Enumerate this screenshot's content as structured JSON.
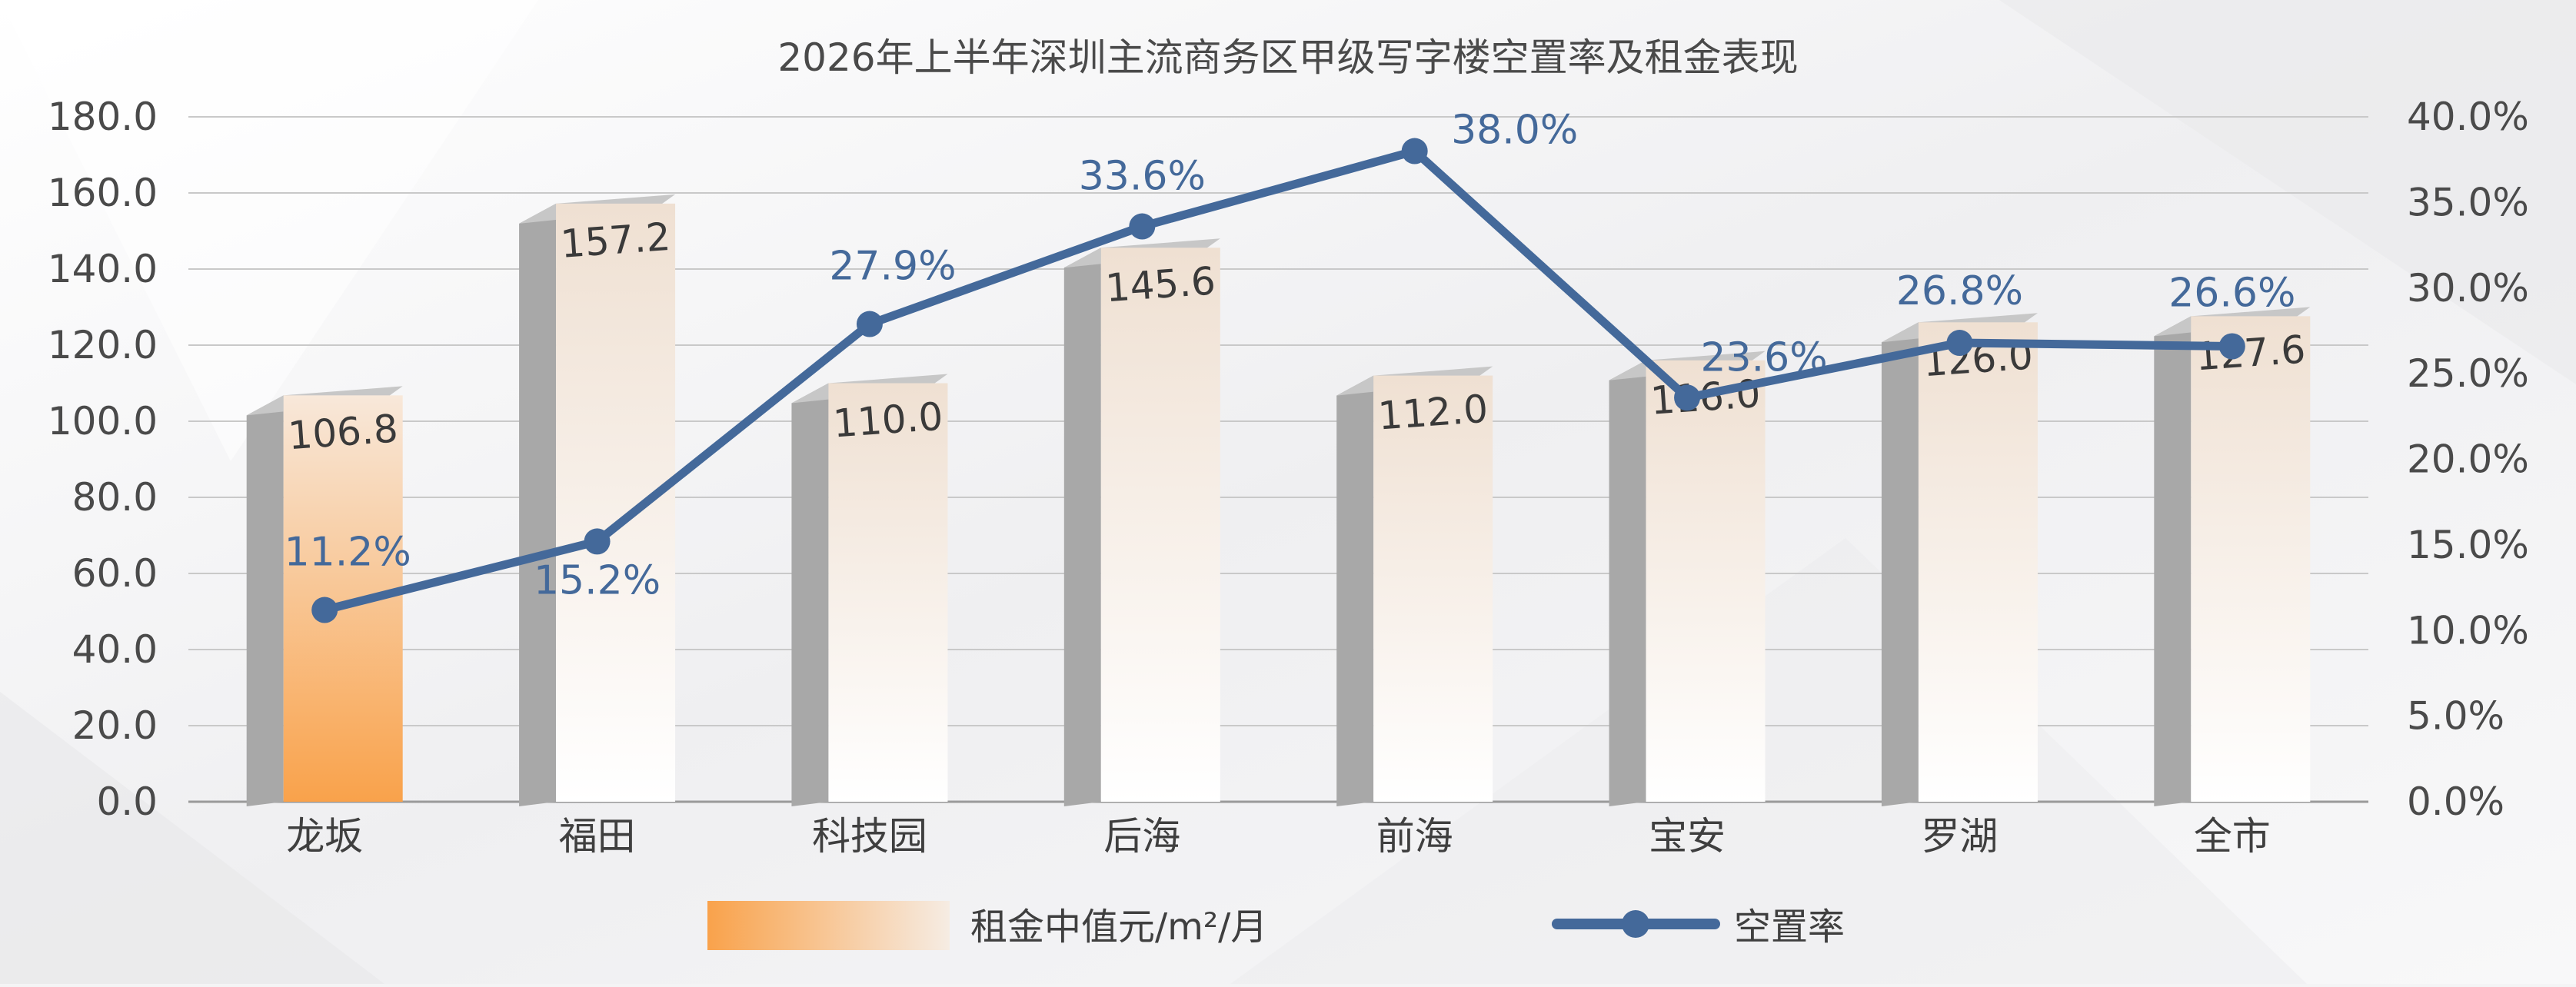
{
  "chart_data": {
    "type": "bar",
    "title": "2026年上半年深圳主流商务区甲级写字楼空置率及租金表现",
    "categories": [
      "龙坂",
      "福田",
      "科技园",
      "后海",
      "前海",
      "宝安",
      "罗湖",
      "全市"
    ],
    "series": [
      {
        "name": "租金中值元/m²/月",
        "type": "bar",
        "axis": "left",
        "values": [
          106.8,
          157.2,
          110.0,
          145.6,
          112.0,
          116.0,
          126.0,
          127.6
        ],
        "labels": [
          "106.8",
          "157.2",
          "110.0",
          "145.6",
          "112.0",
          "116.0",
          "126.0",
          "127.6"
        ],
        "colors": {
          "highlight": "#f9a24b",
          "fill": "#efe2d6",
          "side": "#a8a8a8",
          "top": "#c7c7c7"
        }
      },
      {
        "name": "空置率",
        "type": "line",
        "axis": "right",
        "values": [
          11.2,
          15.2,
          27.9,
          33.6,
          38.0,
          23.6,
          26.8,
          26.6
        ],
        "labels": [
          "11.2%",
          "15.2%",
          "27.9%",
          "33.6%",
          "38.0%",
          "23.6%",
          "26.8%",
          "26.6%"
        ],
        "color": "#44699a"
      }
    ],
    "y_left": {
      "min": 0,
      "max": 180,
      "ticks": [
        "0.0",
        "20.0",
        "40.0",
        "60.0",
        "80.0",
        "100.0",
        "120.0",
        "140.0",
        "160.0",
        "180.0"
      ]
    },
    "y_right": {
      "min": 0,
      "max": 40,
      "ticks": [
        "0.0%",
        "5.0%",
        "10.0%",
        "15.0%",
        "20.0%",
        "25.0%",
        "30.0%",
        "35.0%",
        "40.0%"
      ]
    },
    "grid": true,
    "legend_position": "bottom",
    "colors": {
      "text": "#4a4a4a",
      "grid": "#c9c9c9"
    }
  }
}
